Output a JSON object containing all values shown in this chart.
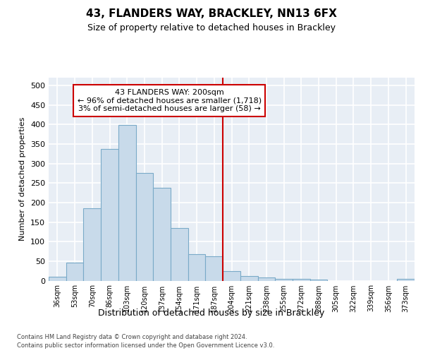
{
  "title": "43, FLANDERS WAY, BRACKLEY, NN13 6FX",
  "subtitle": "Size of property relative to detached houses in Brackley",
  "xlabel": "Distribution of detached houses by size in Brackley",
  "ylabel": "Number of detached properties",
  "categories": [
    "36sqm",
    "53sqm",
    "70sqm",
    "86sqm",
    "103sqm",
    "120sqm",
    "137sqm",
    "154sqm",
    "171sqm",
    "187sqm",
    "204sqm",
    "221sqm",
    "238sqm",
    "255sqm",
    "272sqm",
    "288sqm",
    "305sqm",
    "322sqm",
    "339sqm",
    "356sqm",
    "373sqm"
  ],
  "values": [
    10,
    46,
    185,
    338,
    398,
    275,
    238,
    135,
    68,
    62,
    25,
    12,
    8,
    5,
    4,
    3,
    0,
    0,
    0,
    0,
    5
  ],
  "bar_color": "#c8daea",
  "bar_edge_color": "#7aaac8",
  "annotation_text": "43 FLANDERS WAY: 200sqm\n← 96% of detached houses are smaller (1,718)\n3% of semi-detached houses are larger (58) →",
  "annotation_box_color": "#cc0000",
  "bg_color": "#e8eef5",
  "ylim": [
    0,
    520
  ],
  "yticks": [
    0,
    50,
    100,
    150,
    200,
    250,
    300,
    350,
    400,
    450,
    500
  ],
  "property_line_index": 10,
  "footer_line1": "Contains HM Land Registry data © Crown copyright and database right 2024.",
  "footer_line2": "Contains public sector information licensed under the Open Government Licence v3.0."
}
